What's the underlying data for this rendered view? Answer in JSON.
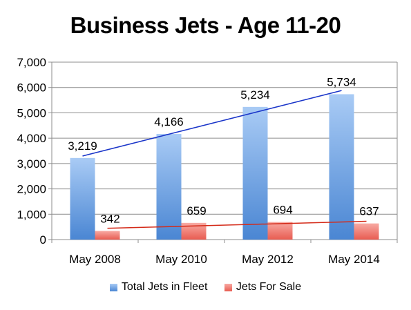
{
  "chart_data": {
    "type": "bar",
    "title": "Business Jets - Age 11-20",
    "categories": [
      "May 2008",
      "May 2010",
      "May 2012",
      "May 2014"
    ],
    "series": [
      {
        "name": "Total Jets in Fleet",
        "values": [
          3219,
          4166,
          5234,
          5734
        ],
        "color": "#5b95dd",
        "trendline_color": "#1a35c9"
      },
      {
        "name": "Jets For Sale",
        "values": [
          342,
          659,
          694,
          637
        ],
        "color": "#ee7066",
        "trendline_color": "#d42a18"
      }
    ],
    "data_labels": [
      [
        "3,219",
        "4,166",
        "5,234",
        "5,734"
      ],
      [
        "342",
        "659",
        "694",
        "637"
      ]
    ],
    "ylim": [
      0,
      7000
    ],
    "yticks": [
      0,
      1000,
      2000,
      3000,
      4000,
      5000,
      6000,
      7000
    ],
    "ytick_labels": [
      "0",
      "1,000",
      "2,000",
      "3,000",
      "4,000",
      "5,000",
      "6,000",
      "7,000"
    ],
    "trendlines": true,
    "grid": true,
    "legend_position": "bottom"
  }
}
